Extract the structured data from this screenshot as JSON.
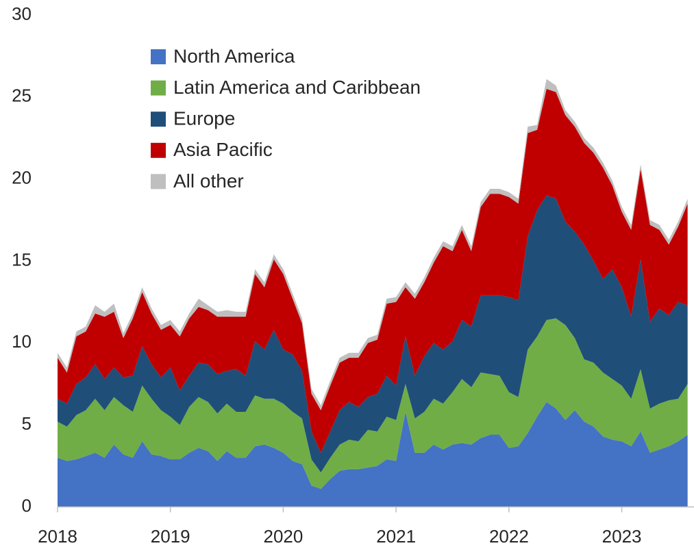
{
  "chart_data": {
    "type": "stacked_area",
    "x": [
      "2018-01",
      "2018-02",
      "2018-03",
      "2018-04",
      "2018-05",
      "2018-06",
      "2018-07",
      "2018-08",
      "2018-09",
      "2018-10",
      "2018-11",
      "2018-12",
      "2019-01",
      "2019-02",
      "2019-03",
      "2019-04",
      "2019-05",
      "2019-06",
      "2019-07",
      "2019-08",
      "2019-09",
      "2019-10",
      "2019-11",
      "2019-12",
      "2020-01",
      "2020-02",
      "2020-03",
      "2020-04",
      "2020-05",
      "2020-06",
      "2020-07",
      "2020-08",
      "2020-09",
      "2020-10",
      "2020-11",
      "2020-12",
      "2021-01",
      "2021-02",
      "2021-03",
      "2021-04",
      "2021-05",
      "2021-06",
      "2021-07",
      "2021-08",
      "2021-09",
      "2021-10",
      "2021-11",
      "2021-12",
      "2022-01",
      "2022-02",
      "2022-03",
      "2022-04",
      "2022-05",
      "2022-06",
      "2022-07",
      "2022-08",
      "2022-09",
      "2022-10",
      "2022-11",
      "2022-12",
      "2023-01",
      "2023-02",
      "2023-03",
      "2023-04",
      "2023-05",
      "2023-06",
      "2023-07",
      "2023-08"
    ],
    "series": [
      {
        "name": "North America",
        "color": "#4472c4",
        "values": [
          3.0,
          2.8,
          2.9,
          3.1,
          3.3,
          3.0,
          3.8,
          3.2,
          3.0,
          4.0,
          3.2,
          3.1,
          2.9,
          2.9,
          3.3,
          3.6,
          3.4,
          2.8,
          3.4,
          3.0,
          3.0,
          3.7,
          3.8,
          3.6,
          3.3,
          2.8,
          2.6,
          1.3,
          1.1,
          1.7,
          2.2,
          2.3,
          2.3,
          2.4,
          2.5,
          2.9,
          2.8,
          5.8,
          3.3,
          3.3,
          3.8,
          3.5,
          3.8,
          3.9,
          3.8,
          4.2,
          4.4,
          4.4,
          3.6,
          3.7,
          4.5,
          5.5,
          6.4,
          6.0,
          5.3,
          5.9,
          5.2,
          4.9,
          4.3,
          4.1,
          4.0,
          3.7,
          4.6,
          3.3,
          3.5,
          3.7,
          4.0,
          4.4
        ]
      },
      {
        "name": "Latin America and Caribbean",
        "color": "#70ad47",
        "values": [
          2.2,
          2.1,
          2.7,
          2.8,
          3.3,
          2.9,
          2.9,
          3.0,
          2.8,
          3.4,
          3.4,
          2.8,
          2.6,
          2.1,
          2.8,
          3.1,
          3.0,
          2.9,
          2.9,
          2.8,
          2.8,
          3.1,
          2.8,
          3.0,
          3.0,
          3.0,
          2.8,
          1.6,
          1.0,
          1.3,
          1.6,
          1.8,
          1.7,
          2.3,
          2.1,
          2.6,
          2.5,
          1.7,
          2.1,
          2.5,
          2.8,
          2.8,
          3.2,
          3.9,
          3.5,
          4.0,
          3.7,
          3.6,
          3.4,
          3.0,
          5.1,
          4.9,
          5.0,
          5.5,
          5.8,
          4.4,
          3.8,
          3.9,
          3.9,
          3.7,
          3.4,
          2.9,
          3.8,
          2.7,
          2.8,
          2.8,
          2.6,
          3.1
        ]
      },
      {
        "name": "Europe",
        "color": "#1f4e79",
        "values": [
          1.4,
          1.4,
          1.9,
          2.0,
          2.1,
          1.9,
          1.8,
          1.7,
          2.2,
          2.4,
          2.1,
          2.0,
          3.0,
          2.1,
          1.9,
          2.1,
          2.3,
          2.4,
          2.0,
          2.6,
          2.2,
          3.3,
          3.0,
          4.2,
          3.3,
          3.5,
          2.9,
          1.7,
          1.2,
          1.6,
          2.1,
          2.3,
          2.1,
          2.0,
          2.3,
          2.5,
          2.1,
          2.9,
          2.6,
          3.4,
          3.4,
          3.3,
          3.1,
          3.6,
          3.7,
          4.7,
          4.8,
          4.9,
          5.8,
          5.9,
          6.9,
          7.7,
          7.6,
          7.3,
          6.3,
          6.5,
          7.0,
          6.2,
          5.7,
          6.7,
          6.0,
          5.0,
          6.7,
          5.3,
          5.8,
          5.2,
          5.9,
          4.8
        ]
      },
      {
        "name": "Asia Pacific",
        "color": "#c00000",
        "values": [
          2.5,
          1.9,
          2.9,
          2.8,
          3.1,
          3.8,
          3.4,
          2.4,
          3.5,
          3.3,
          3.1,
          2.9,
          2.6,
          3.3,
          3.5,
          3.4,
          3.3,
          3.5,
          3.3,
          3.2,
          3.6,
          4.1,
          3.8,
          4.3,
          4.6,
          3.4,
          2.9,
          2.3,
          2.6,
          2.8,
          2.9,
          2.7,
          3.0,
          3.3,
          3.3,
          4.4,
          5.1,
          3.0,
          4.7,
          4.5,
          4.9,
          6.3,
          5.5,
          5.5,
          4.6,
          5.4,
          6.2,
          6.2,
          6.1,
          5.9,
          6.3,
          4.9,
          6.5,
          6.5,
          6.5,
          6.4,
          6.2,
          6.6,
          6.8,
          5.1,
          4.6,
          5.3,
          5.5,
          5.9,
          4.8,
          4.3,
          4.6,
          6.2
        ]
      },
      {
        "name": "All other",
        "color": "#bfbfbf",
        "values": [
          0.3,
          0.3,
          0.3,
          0.3,
          0.5,
          0.3,
          0.5,
          0.3,
          0.3,
          0.3,
          0.3,
          0.3,
          0.3,
          0.3,
          0.3,
          0.5,
          0.3,
          0.3,
          0.4,
          0.3,
          0.3,
          0.3,
          0.3,
          0.3,
          0.3,
          0.3,
          0.3,
          0.3,
          0.3,
          0.3,
          0.3,
          0.3,
          0.3,
          0.3,
          0.3,
          0.3,
          0.3,
          0.3,
          0.3,
          0.3,
          0.3,
          0.3,
          0.3,
          0.3,
          0.3,
          0.3,
          0.3,
          0.3,
          0.3,
          0.3,
          0.4,
          0.3,
          0.6,
          0.4,
          0.3,
          0.3,
          0.3,
          0.3,
          0.3,
          0.3,
          0.3,
          0.3,
          0.3,
          0.3,
          0.3,
          0.3,
          0.3,
          0.3
        ]
      }
    ],
    "xlim": [
      2018,
      2023.64
    ],
    "xticks": [
      2018,
      2019,
      2020,
      2021,
      2022,
      2023
    ],
    "ylim": [
      0,
      30
    ],
    "yticks": [
      0,
      5,
      10,
      15,
      20,
      25,
      30
    ],
    "grid": false,
    "legend_position": "upper left"
  }
}
